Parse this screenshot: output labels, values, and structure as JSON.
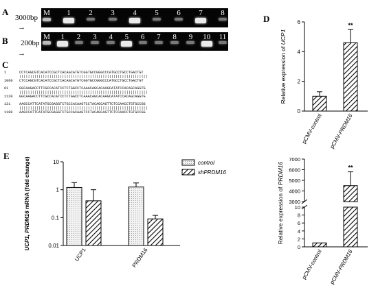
{
  "panels": {
    "a": "A",
    "b": "B",
    "c": "C",
    "d": "D",
    "e": "E"
  },
  "gel_a": {
    "size": "3000bp",
    "lanes": [
      "M",
      "1",
      "2",
      "3",
      "4",
      "5",
      "6",
      "7",
      "8"
    ],
    "bright_lanes": [
      "1",
      "4",
      "7"
    ]
  },
  "gel_b": {
    "size": "200bp",
    "lanes": [
      "M",
      "1",
      "2",
      "3",
      "4",
      "5",
      "6",
      "7",
      "8",
      "9",
      "10",
      "11"
    ],
    "bright_lanes": [
      "1",
      "5",
      "10"
    ]
  },
  "arrow_glyph": "→",
  "sequence": {
    "rows": [
      {
        "n": "1",
        "s": "CCTCAGCGTCACATCCGCTCACAGCATGTCGGTGCCGGGCCCATGCCTGCCTGACTGT"
      },
      {
        "n": "",
        "s": "||||||||||||||||||||||||||||||||||||||||||||||||||||||||||||"
      },
      {
        "n": "1060",
        "s": "CTCCAGCGTCACATCCGCTCACAGCATGTCGGTGCCGGGCCCATGCCTGCCTGACTGT"
      },
      {
        "n": "61",
        "s": "GGCAAGACCTTCGCCACATCCTCTGGCCTCAAACAGCACAAGCATATCCACAGCAGGTG"
      },
      {
        "n": "",
        "s": "||||||||||||||||||||||||||||||||||||||||||||||||||||||||||||"
      },
      {
        "n": "1120",
        "s": "GGCAAGACCTTCGCCACATCCTCTGGCCTCAAACAGCACAAGCATATCCACAGCAGGTG"
      },
      {
        "n": "121",
        "s": "AAGCCATTCATATGCGAGGTCTGCCACAAGTCCTACAGCAGTTCTCCAACCTGTGCCGG"
      },
      {
        "n": "",
        "s": "||||||||||||||||||||||||||||||||||||||||||||||||||||||||||||"
      },
      {
        "n": "1180",
        "s": "AAGCCATTCATATGCGAGGTCTGCCACAAGTCCTACAGCAGTTCTCCAACCTGTGCCGG"
      }
    ]
  },
  "chart_data": [
    {
      "type": "bar",
      "ylabel": "Relative expression of UCP1",
      "ylim": [
        0,
        6
      ],
      "yticks": [
        0,
        2,
        4,
        6
      ],
      "categories": [
        "pCMV-control",
        "pCMV-PRDM16"
      ],
      "values": [
        1.0,
        4.6
      ],
      "errors": [
        0.3,
        0.9
      ],
      "annotations": [
        "",
        "**"
      ]
    },
    {
      "type": "bar",
      "ylabel": "Relative expression of PRDM16",
      "y_broken": true,
      "lower_ticks": [
        0,
        2,
        4,
        6,
        8,
        10
      ],
      "upper_ticks": [
        3000,
        4000,
        5000,
        6000,
        7000
      ],
      "categories": [
        "pCMV-control",
        "pCMV-PRDM16"
      ],
      "values": [
        1.0,
        4500
      ],
      "errors": [
        0.1,
        1300
      ],
      "annotations": [
        "",
        "**"
      ]
    },
    {
      "type": "bar",
      "ylabel": "UCP1, PRDM16 mRNA (fold change)",
      "yscale": "log",
      "ylim": [
        0.01,
        10
      ],
      "yticks": [
        "10",
        "1",
        "0.1",
        "0.01"
      ],
      "categories": [
        "UCP1",
        "PRDM16"
      ],
      "series": [
        {
          "name": "control",
          "values": [
            1.2,
            1.25
          ],
          "errors": [
            0.6,
            0.5
          ]
        },
        {
          "name": "shPRDM16",
          "values": [
            0.4,
            0.09
          ],
          "errors": [
            0.6,
            0.03
          ]
        }
      ]
    }
  ],
  "colors": {
    "gel": "#050505",
    "band": "#eaeaea",
    "axis": "#000000",
    "dotted_fill": "#e6e6e6"
  }
}
